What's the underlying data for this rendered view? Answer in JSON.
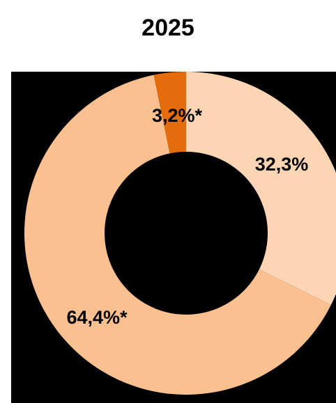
{
  "chart_data": {
    "type": "pie",
    "title": "2025",
    "donut": true,
    "slices": [
      {
        "value": 32.3,
        "label": "32,3%",
        "color": "#FCD5B5"
      },
      {
        "value": 64.4,
        "label": "64,4%*",
        "color": "#FAC090"
      },
      {
        "value": 3.2,
        "label": "3,2%*",
        "color": "#E46C0A"
      }
    ],
    "start_angle": "12 o'clock",
    "direction": "clockwise",
    "plot_background": "#000000",
    "legend": "none"
  }
}
